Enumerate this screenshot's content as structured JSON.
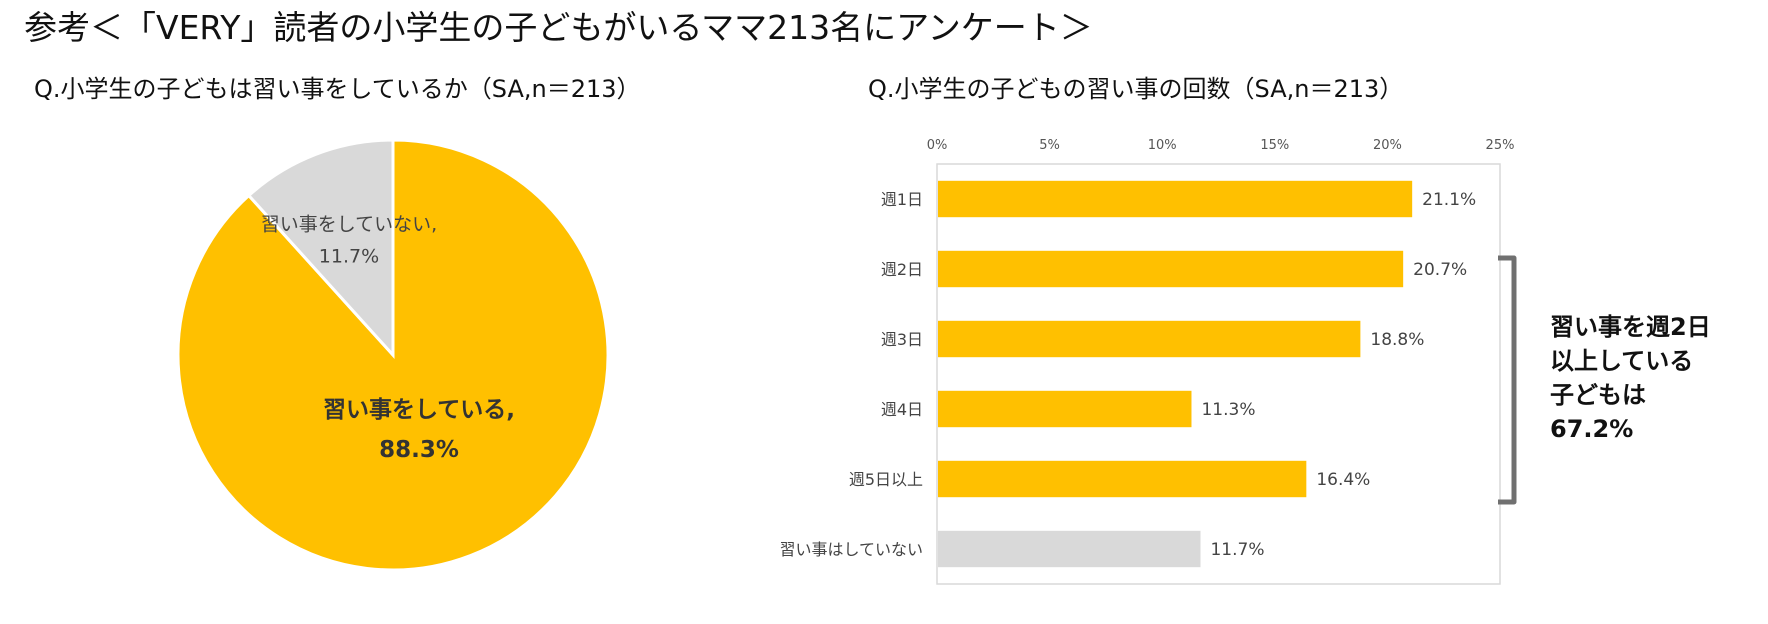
{
  "title": "参考＜「VERY」読者の小学生の子どもがいるママ213名にアンケート＞",
  "colors": {
    "accent": "#FFC000",
    "neutral": "#D9D9D9",
    "bracket": "#707070"
  },
  "chart_data": [
    {
      "type": "pie",
      "title": "Q.小学生の子どもは習い事をしているか（SA,n＝213）",
      "slices": [
        {
          "label": "習い事をしている,",
          "value": 88.3,
          "display": "88.3%",
          "color": "#FFC000"
        },
        {
          "label": "習い事をしていない,",
          "value": 11.7,
          "display": "11.7%",
          "color": "#D9D9D9"
        }
      ]
    },
    {
      "type": "bar",
      "orientation": "horizontal",
      "title": "Q.小学生の子どもの習い事の回数（SA,n＝213）",
      "categories": [
        "週1日",
        "週2日",
        "週3日",
        "週4日",
        "週5日以上",
        "習い事はしていない"
      ],
      "values": [
        21.1,
        20.7,
        18.8,
        11.3,
        16.4,
        11.7
      ],
      "value_labels": [
        "21.1%",
        "20.7%",
        "18.8%",
        "11.3%",
        "16.4%",
        "11.7%"
      ],
      "bar_colors": [
        "#FFC000",
        "#FFC000",
        "#FFC000",
        "#FFC000",
        "#FFC000",
        "#D9D9D9"
      ],
      "xlim": [
        0,
        25
      ],
      "xticks": [
        "0%",
        "5%",
        "10%",
        "15%",
        "20%",
        "25%"
      ],
      "xaxis_position": "top"
    }
  ],
  "annotation": {
    "lines": [
      "習い事を週2日",
      "以上している",
      "子どもは",
      "67.2%"
    ]
  }
}
